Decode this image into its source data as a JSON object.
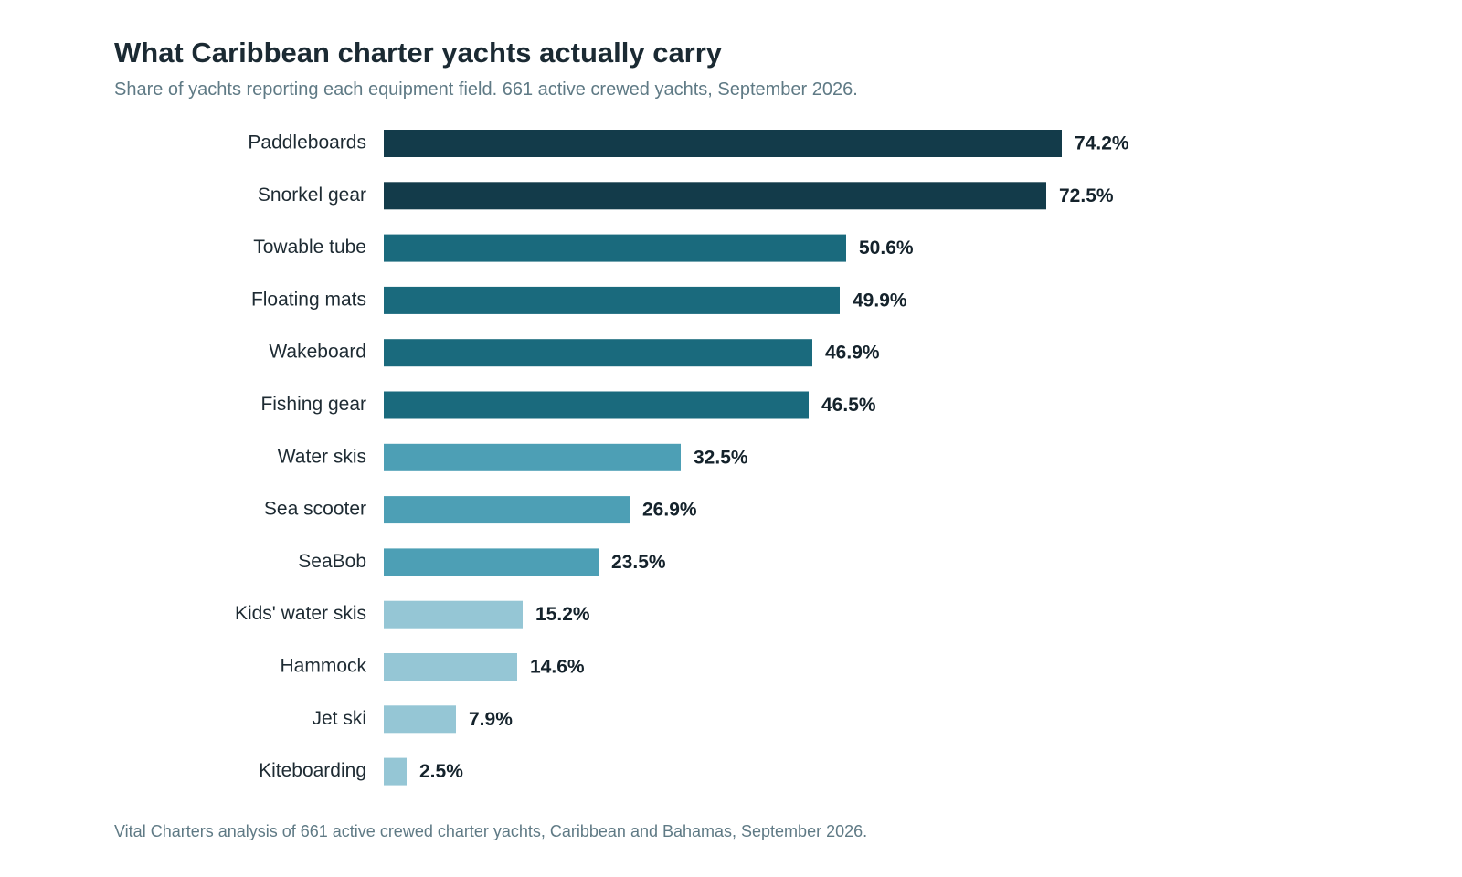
{
  "chart_data": {
    "type": "bar",
    "orientation": "horizontal",
    "title": "What Caribbean charter yachts actually carry",
    "subtitle": "Share of yachts reporting each equipment field. 661 active crewed yachts, September 2026.",
    "source": "Vital Charters analysis of 661 active crewed charter yachts, Caribbean and Bahamas, September 2026.",
    "xlabel": "",
    "ylabel": "",
    "unit": "%",
    "xlim": [
      0,
      100
    ],
    "grid": false,
    "legend": "none",
    "categories": [
      "Paddleboards",
      "Snorkel gear",
      "Towable tube",
      "Floating mats",
      "Wakeboard",
      "Fishing gear",
      "Water skis",
      "Sea scooter",
      "SeaBob",
      "Kids' water skis",
      "Hammock",
      "Jet ski",
      "Kiteboarding"
    ],
    "values": [
      74.2,
      72.5,
      50.6,
      49.9,
      46.9,
      46.5,
      32.5,
      26.9,
      23.5,
      15.2,
      14.6,
      7.9,
      2.5
    ],
    "value_labels": [
      "74.2%",
      "72.5%",
      "50.6%",
      "49.9%",
      "46.9%",
      "46.5%",
      "32.5%",
      "26.9%",
      "23.5%",
      "15.2%",
      "14.6%",
      "7.9%",
      "2.5%"
    ],
    "bar_colors": [
      "#133b4a",
      "#133b4a",
      "#1a6a7d",
      "#1a6a7d",
      "#1a6a7d",
      "#1a6a7d",
      "#4d9fb5",
      "#4d9fb5",
      "#4d9fb5",
      "#95c6d5",
      "#95c6d5",
      "#95c6d5",
      "#95c6d5"
    ]
  }
}
